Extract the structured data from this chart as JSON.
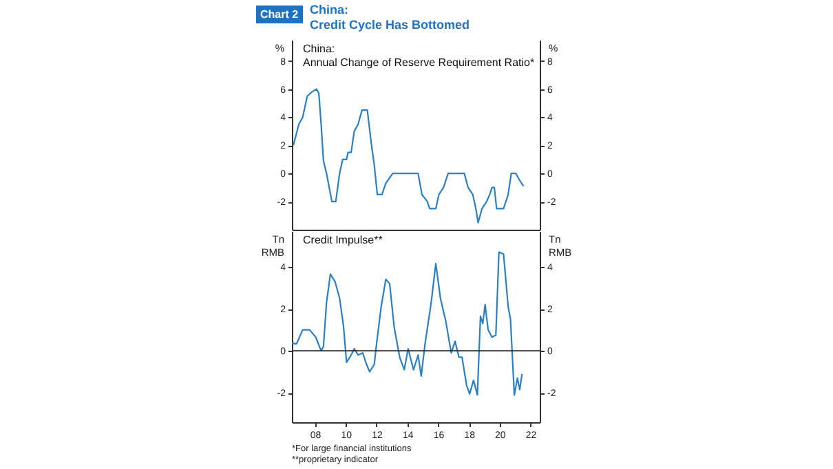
{
  "chart_data": [
    {
      "type": "line",
      "title": "China:\nCredit Cycle Has Bottomed",
      "subtitle": "China:\nAnnual Change of Reserve Requirement Ratio*",
      "ylabel": "%",
      "y2label": "%",
      "annotations": [
        "Chart 2"
      ],
      "x": [
        2006.6,
        2006.95,
        2007.2,
        2007.5,
        2007.8,
        2008.1,
        2008.25,
        2008.4,
        2008.55,
        2008.75,
        2009.1,
        2009.35,
        2009.6,
        2009.8,
        2010.05,
        2010.15,
        2010.35,
        2010.55,
        2010.8,
        2011.05,
        2011.4,
        2011.65,
        2011.85,
        2012.05,
        2012.35,
        2012.6,
        2013.05,
        2014.7,
        2014.95,
        2015.3,
        2015.45,
        2015.85,
        2016.05,
        2016.35,
        2016.65,
        2017.7,
        2017.95,
        2018.25,
        2018.45,
        2018.6,
        2018.85,
        2019.15,
        2019.35,
        2019.5,
        2019.65,
        2019.8,
        2020.25,
        2020.55,
        2020.75,
        2021.05,
        2021.3,
        2021.55
      ],
      "series": [
        {
          "color": "#2b7fc3",
          "values": [
            2.0,
            3.5,
            4.0,
            5.5,
            5.8,
            6.0,
            5.7,
            3.5,
            0.9,
            0,
            -2,
            -2,
            0,
            1.0,
            1.0,
            1.5,
            1.5,
            3.0,
            3.5,
            4.5,
            4.5,
            2.2,
            0.6,
            -1.5,
            -1.5,
            -0.7,
            0,
            0,
            -1.5,
            -2,
            -2.5,
            -2.5,
            -1.5,
            -1.0,
            0,
            0,
            -1.0,
            -1.5,
            -2.5,
            -3.5,
            -2.5,
            -2,
            -1.5,
            -1.0,
            -1.0,
            -2.5,
            -2.5,
            -1.5,
            0,
            0,
            -0.5,
            -0.9
          ]
        }
      ],
      "xlim": [
        2006.5,
        2022.6
      ],
      "ylim": [
        -4,
        9.5
      ],
      "yticks": [
        -2,
        0,
        2,
        4,
        6,
        8
      ],
      "y2lim": [
        -4,
        9.5
      ],
      "y2ticks": [
        -2,
        0,
        2,
        4,
        6,
        8
      ],
      "tick_labels": "y",
      "grid": false
    },
    {
      "type": "line",
      "title": "Credit Impulse**",
      "ylabel": "Tn RMB",
      "y2label": "Tn RMB",
      "annotations": [
        "*For large financial institutions",
        "**proprietary indicator"
      ],
      "x": [
        2006.5,
        2006.8,
        2007.2,
        2007.65,
        2008.05,
        2008.4,
        2008.55,
        2008.75,
        2009.0,
        2009.3,
        2009.6,
        2009.85,
        2010.05,
        2010.35,
        2010.55,
        2010.8,
        2011.1,
        2011.35,
        2011.55,
        2011.85,
        2012.0,
        2012.3,
        2012.6,
        2012.85,
        2013.15,
        2013.5,
        2013.8,
        2014.05,
        2014.4,
        2014.7,
        2014.9,
        2015.15,
        2015.55,
        2015.85,
        2016.15,
        2016.5,
        2016.85,
        2017.1,
        2017.35,
        2017.55,
        2017.85,
        2018.05,
        2018.3,
        2018.55,
        2018.75,
        2018.9,
        2019.05,
        2019.25,
        2019.5,
        2019.75,
        2019.95,
        2020.25,
        2020.55,
        2020.7,
        2020.95,
        2021.15,
        2021.3,
        2021.45
      ],
      "series": [
        {
          "color": "#2b7fc3",
          "values": [
            0.37,
            0.33,
            1.0,
            1.0,
            0.65,
            0,
            0.2,
            2.3,
            3.65,
            3.3,
            2.5,
            1.2,
            -0.55,
            -0.2,
            0.1,
            -0.2,
            -0.1,
            -0.65,
            -1.0,
            -0.65,
            0.33,
            2.1,
            3.4,
            3.2,
            1.1,
            -0.3,
            -0.9,
            0.1,
            -0.9,
            -0.2,
            -1.2,
            0.33,
            2.3,
            4.15,
            2.5,
            1.4,
            -0.1,
            0.45,
            -0.3,
            -0.3,
            -1.65,
            -2.05,
            -1.4,
            -2.1,
            1.65,
            1.3,
            2.2,
            1.0,
            0.65,
            0.75,
            4.7,
            4.6,
            2.1,
            1.5,
            -2.1,
            -1.3,
            -1.85,
            -1.1
          ]
        }
      ],
      "xlim": [
        2006.5,
        2022.6
      ],
      "xticks": [
        {
          "value": 2008,
          "label": "08"
        },
        {
          "value": 2010,
          "label": "10"
        },
        {
          "value": 2012,
          "label": "12"
        },
        {
          "value": 2014,
          "label": "14"
        },
        {
          "value": 2016,
          "label": "16"
        },
        {
          "value": 2018,
          "label": "18"
        },
        {
          "value": 2020,
          "label": "20"
        },
        {
          "value": 2022,
          "label": "22"
        }
      ],
      "ylim": [
        -3.4,
        5.7
      ],
      "yticks": [
        -2,
        0,
        2,
        4
      ],
      "y2lim": [
        -3.4,
        5.7
      ],
      "y2ticks": [
        -2,
        0,
        2,
        4
      ],
      "ref_lines": [
        {
          "axis": "y",
          "value": 0,
          "color": "#222222"
        }
      ],
      "grid": false
    }
  ]
}
